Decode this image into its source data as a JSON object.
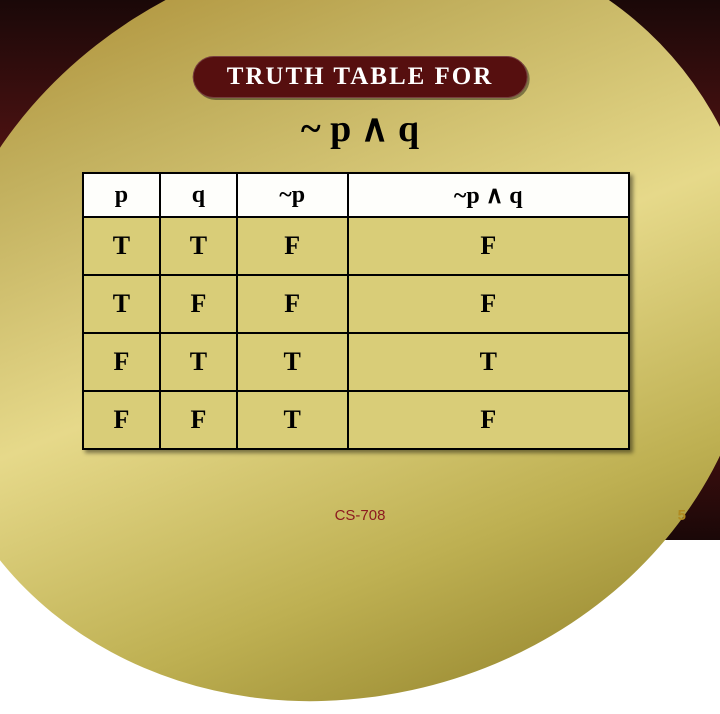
{
  "title": {
    "text": "TRUTH TABLE FOR",
    "fontsize": 25
  },
  "expression": {
    "text": "~ p ∧ q",
    "fontsize": 38
  },
  "table": {
    "header_fontsize": 24,
    "cell_fontsize": 26,
    "columns": [
      "p",
      "q",
      "~p",
      "~p ∧ q"
    ],
    "rows": [
      [
        "T",
        "T",
        "F",
        "F"
      ],
      [
        "T",
        "F",
        "F",
        "F"
      ],
      [
        "F",
        "T",
        "T",
        "T"
      ],
      [
        "F",
        "F",
        "T",
        "F"
      ]
    ],
    "header_bg": "#fefefb",
    "cell_bg": "#d9cd78",
    "border_color": "#000000"
  },
  "footer": {
    "course": "CS-708",
    "page": "5",
    "fontsize": 15
  },
  "colors": {
    "maroon_dark": "#1a0808",
    "maroon_mid": "#781818",
    "pill_bg": "#560f0f",
    "leaf_light": "#e6d98a",
    "leaf_dark": "#8a7a24"
  }
}
